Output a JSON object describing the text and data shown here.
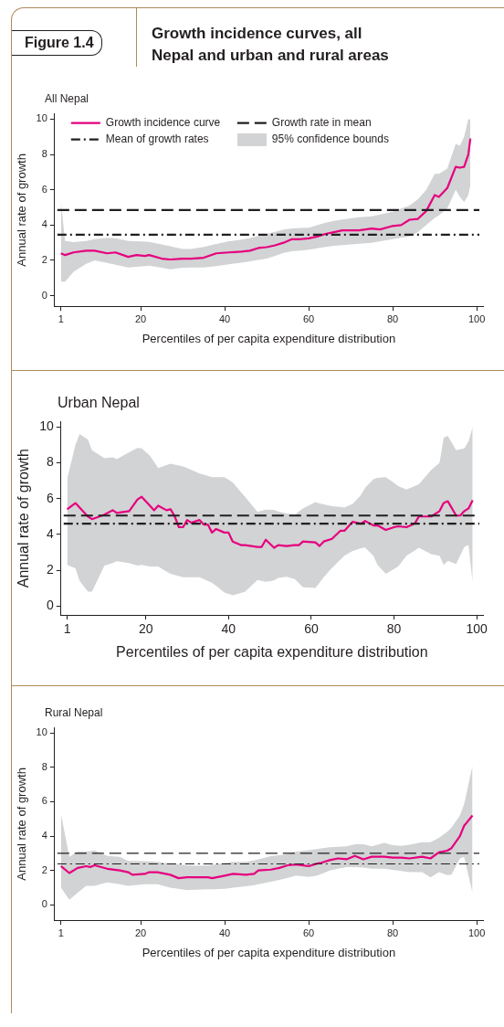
{
  "chart_data": [
    {
      "type": "line",
      "title": "Growth incidence curves, all Nepal and urban and rural areas",
      "subtitle": "All Nepal",
      "annotations": [
        "Figure 1.4",
        "95% confidence bounds"
      ],
      "xlabel": "Percentiles of per capita expenditure distribution",
      "ylabel": "Annual rate of growth",
      "xlim": [
        -0.5,
        101.5
      ],
      "xticks": [
        1,
        20,
        40,
        60,
        80,
        100
      ],
      "ylim": [
        -0.6,
        10.3
      ],
      "yticks": [
        0,
        2,
        4,
        6,
        8,
        10
      ],
      "legend": "top",
      "series": [
        {
          "name": "Growth incidence curve",
          "color": "#e6007e",
          "x": [
            1,
            2,
            4,
            7,
            9,
            12,
            14,
            17,
            19,
            21,
            22,
            25,
            27,
            30,
            32,
            35,
            38,
            41,
            44,
            46,
            48,
            50,
            52,
            54,
            56,
            58,
            60,
            62,
            64,
            66,
            68,
            72,
            75,
            77,
            80,
            82,
            84,
            86,
            88,
            90,
            91,
            93,
            95,
            96,
            97,
            98,
            98.5
          ],
          "values": [
            2.4,
            2.3,
            2.45,
            2.55,
            2.55,
            2.4,
            2.45,
            2.2,
            2.3,
            2.25,
            2.3,
            2.1,
            2.05,
            2.1,
            2.1,
            2.15,
            2.4,
            2.45,
            2.5,
            2.55,
            2.7,
            2.75,
            2.85,
            3.0,
            3.2,
            3.2,
            3.25,
            3.35,
            3.5,
            3.6,
            3.7,
            3.7,
            3.8,
            3.75,
            3.95,
            4.0,
            4.3,
            4.35,
            4.8,
            5.7,
            5.6,
            6.1,
            7.3,
            7.25,
            7.3,
            8.0,
            8.9
          ],
          "lower": [
            0.8,
            0.8,
            1.35,
            1.8,
            2.0,
            1.85,
            1.75,
            1.6,
            1.64,
            1.68,
            1.7,
            1.58,
            1.5,
            1.58,
            1.6,
            1.6,
            1.68,
            1.78,
            1.87,
            1.94,
            2.02,
            2.1,
            2.26,
            2.42,
            2.52,
            2.56,
            2.6,
            2.68,
            2.76,
            2.82,
            2.86,
            2.94,
            3.0,
            3.08,
            3.2,
            3.28,
            3.36,
            3.6,
            4.0,
            4.4,
            4.55,
            4.95,
            6.0,
            5.6,
            5.3,
            5.7,
            6.3
          ],
          "upper": [
            5.3,
            3.1,
            3.03,
            3.1,
            3.2,
            3.28,
            3.25,
            3.1,
            3.08,
            3.06,
            3.05,
            2.9,
            2.8,
            2.65,
            2.64,
            2.76,
            2.93,
            3.08,
            3.17,
            3.26,
            3.38,
            3.5,
            3.62,
            3.74,
            3.81,
            3.83,
            3.85,
            3.99,
            4.13,
            4.24,
            4.32,
            4.44,
            4.5,
            4.6,
            4.75,
            4.93,
            5.11,
            5.47,
            6.0,
            6.9,
            6.9,
            7.2,
            8.6,
            8.5,
            9.0,
            10.0,
            10.0
          ]
        }
      ],
      "ref_lines": [
        {
          "axis": "y",
          "value": 4.85,
          "label": "Growth rate in mean",
          "line_style": "dashed",
          "color": "#231f20"
        },
        {
          "axis": "y",
          "value": 3.45,
          "label": "Mean of growth rates",
          "line_style": "dashdot",
          "color": "#231f20"
        }
      ]
    },
    {
      "type": "line",
      "subtitle": "Urban Nepal",
      "xlabel": "Percentiles of per capita expenditure distribution",
      "ylabel": "Annual rate of growth",
      "xlim": [
        -0.5,
        101.5
      ],
      "xticks": [
        1,
        20,
        40,
        60,
        80,
        100
      ],
      "ylim": [
        -0.5,
        10.3
      ],
      "yticks": [
        0,
        2,
        4,
        6,
        8,
        10
      ],
      "series": [
        {
          "color": "#e6007e",
          "x": [
            1,
            3,
            4,
            6,
            7,
            10,
            12,
            13,
            16,
            18,
            19,
            21,
            22,
            23,
            25,
            26,
            27,
            28,
            29,
            30,
            31,
            33,
            34,
            35,
            36,
            37,
            39,
            40,
            41,
            43,
            44,
            47,
            48,
            49,
            51,
            52,
            54,
            56,
            57,
            58,
            61,
            62,
            63,
            65,
            67,
            68,
            70,
            72,
            73,
            75,
            76,
            78,
            80,
            81,
            83,
            85,
            86,
            89,
            91,
            92,
            93,
            95,
            96,
            97,
            98,
            99
          ],
          "values": [
            5.4,
            5.75,
            5.5,
            5.0,
            4.85,
            5.1,
            5.35,
            5.2,
            5.3,
            5.95,
            6.1,
            5.6,
            5.35,
            5.6,
            5.35,
            5.4,
            5.0,
            4.4,
            4.4,
            4.8,
            4.65,
            4.8,
            4.55,
            4.55,
            4.1,
            4.3,
            4.1,
            4.1,
            3.6,
            3.4,
            3.4,
            3.3,
            3.3,
            3.7,
            3.25,
            3.4,
            3.35,
            3.4,
            3.4,
            3.6,
            3.55,
            3.35,
            3.6,
            3.75,
            4.2,
            4.2,
            4.7,
            4.6,
            4.75,
            4.5,
            4.5,
            4.25,
            4.4,
            4.45,
            4.4,
            4.6,
            5.0,
            5.0,
            5.3,
            5.75,
            5.85,
            5.05,
            5.05,
            5.3,
            5.45,
            5.9
          ],
          "lower": [
            2.3,
            2.1,
            1.4,
            0.8,
            0.8,
            2.25,
            2.4,
            2.5,
            2.4,
            2.25,
            2.3,
            2.2,
            2.2,
            2.2,
            1.93,
            1.8,
            1.73,
            1.67,
            1.6,
            1.6,
            1.6,
            1.6,
            1.5,
            1.4,
            1.3,
            1.12,
            0.75,
            0.68,
            0.6,
            0.73,
            0.8,
            1.45,
            1.4,
            1.35,
            1.43,
            1.57,
            1.63,
            1.5,
            1.28,
            1.05,
            1.0,
            1.3,
            1.6,
            2.13,
            2.58,
            2.8,
            3.07,
            3.23,
            3.27,
            2.8,
            2.3,
            1.8,
            2.07,
            2.2,
            2.8,
            3.1,
            3.25,
            2.9,
            2.8,
            2.3,
            2.53,
            2.35,
            2.83,
            3.3,
            3.4,
            1.3
          ],
          "upper": [
            7.1,
            9.0,
            9.6,
            9.3,
            8.7,
            8.25,
            8.3,
            8.2,
            8.58,
            8.83,
            8.8,
            8.4,
            8.05,
            7.7,
            7.87,
            7.95,
            7.9,
            7.85,
            7.8,
            7.7,
            7.6,
            7.4,
            7.33,
            7.27,
            7.2,
            7.2,
            7.2,
            7.05,
            6.9,
            6.37,
            6.1,
            5.25,
            5.32,
            5.38,
            5.37,
            5.28,
            5.17,
            5.1,
            5.28,
            5.45,
            5.8,
            5.73,
            5.67,
            5.58,
            5.53,
            5.5,
            5.7,
            6.2,
            6.6,
            7.08,
            7.15,
            7.2,
            6.87,
            6.7,
            6.5,
            6.7,
            6.8,
            7.6,
            8.0,
            9.4,
            9.5,
            8.7,
            8.75,
            8.8,
            9.2,
            10.0
          ]
        }
      ],
      "ref_lines": [
        {
          "axis": "y",
          "value": 5.05,
          "line_style": "dashed",
          "color": "#231f20"
        },
        {
          "axis": "y",
          "value": 4.6,
          "line_style": "dashdot",
          "color": "#231f20"
        }
      ]
    },
    {
      "type": "line",
      "subtitle": "Rural Nepal",
      "xlabel": "Percentiles of per capita expenditure distribution",
      "ylabel": "Annual rate of growth",
      "xlim": [
        -0.5,
        101.5
      ],
      "xticks": [
        1,
        20,
        40,
        60,
        80,
        100
      ],
      "ylim": [
        -0.9,
        10.3
      ],
      "yticks": [
        0,
        2,
        4,
        6,
        8,
        10
      ],
      "series": [
        {
          "color": "#e6007e",
          "x": [
            1,
            3,
            5,
            7,
            8,
            9,
            12,
            15,
            17,
            18,
            21,
            22,
            24,
            27,
            29,
            31,
            33,
            36,
            37,
            40,
            42,
            45,
            47,
            48,
            51,
            53,
            55,
            57,
            60,
            62,
            63,
            65,
            67,
            69,
            71,
            73,
            75,
            78,
            80,
            82,
            84,
            87,
            89,
            91,
            93,
            94,
            96,
            97,
            99
          ],
          "values": [
            2.25,
            1.85,
            2.15,
            2.25,
            2.2,
            2.3,
            2.1,
            2.0,
            1.9,
            1.75,
            1.8,
            1.9,
            1.9,
            1.75,
            1.55,
            1.6,
            1.6,
            1.6,
            1.55,
            1.7,
            1.8,
            1.75,
            1.8,
            2.0,
            2.05,
            2.15,
            2.3,
            2.35,
            2.25,
            2.4,
            2.45,
            2.6,
            2.7,
            2.65,
            2.85,
            2.65,
            2.8,
            2.8,
            2.75,
            2.75,
            2.7,
            2.8,
            2.7,
            3.05,
            3.15,
            3.3,
            4.0,
            4.6,
            5.2
          ],
          "lower": [
            1.0,
            0.3,
            0.7,
            1.1,
            1.1,
            1.1,
            1.3,
            1.2,
            1.1,
            1.13,
            1.2,
            1.2,
            1.2,
            1.0,
            0.93,
            0.85,
            0.88,
            0.9,
            0.9,
            0.93,
            1.0,
            1.08,
            1.15,
            1.2,
            1.35,
            1.45,
            1.57,
            1.7,
            1.63,
            1.7,
            1.8,
            2.0,
            2.1,
            2.2,
            2.2,
            2.17,
            2.1,
            2.1,
            2.03,
            1.97,
            1.9,
            1.9,
            1.6,
            1.9,
            1.73,
            1.75,
            2.7,
            2.8,
            0.7
          ],
          "upper": [
            5.3,
            2.8,
            3.1,
            3.1,
            3.13,
            3.17,
            2.85,
            2.8,
            2.55,
            2.55,
            2.54,
            2.53,
            2.5,
            2.4,
            2.35,
            2.3,
            2.28,
            2.29,
            2.33,
            2.43,
            2.5,
            2.5,
            2.58,
            2.65,
            2.83,
            2.88,
            2.95,
            3.1,
            3.18,
            3.24,
            3.28,
            3.35,
            3.38,
            3.4,
            3.53,
            3.53,
            3.4,
            3.6,
            3.47,
            3.43,
            3.5,
            3.65,
            3.65,
            3.9,
            4.25,
            4.5,
            5.2,
            5.85,
            8.1
          ]
        }
      ],
      "ref_lines": [
        {
          "axis": "y",
          "value": 3.0,
          "line_style": "dashed",
          "color": "#231f20"
        },
        {
          "axis": "y",
          "value": 2.38,
          "line_style": "dashdot",
          "color": "#231f20"
        }
      ]
    }
  ]
}
